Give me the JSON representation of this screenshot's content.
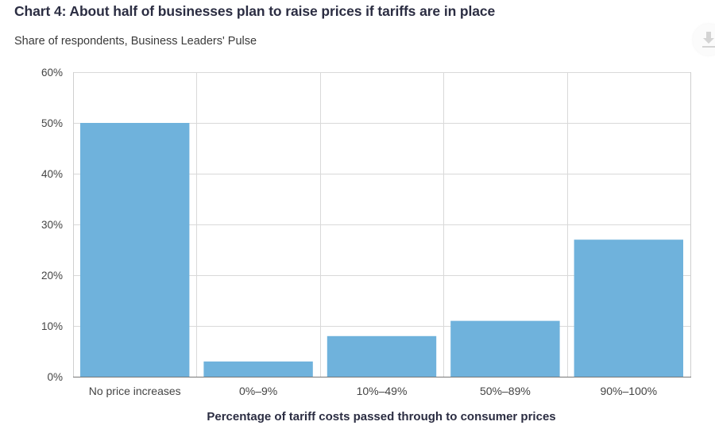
{
  "header": {
    "title": "Chart 4: About half of businesses plan to raise prices if tariffs are in place",
    "subtitle": "Share of respondents, Business Leaders' Pulse"
  },
  "toolbar": {
    "download_icon": "download-icon"
  },
  "colors": {
    "bar": "#6fb2dc",
    "grid": "#d9d9d9",
    "axis": "#777777",
    "title": "#2b2d42"
  },
  "chart_data": {
    "type": "bar",
    "title": "Chart 4: About half of businesses plan to raise prices if tariffs are in place",
    "subtitle": "Share of respondents, Business Leaders' Pulse",
    "xlabel": "Percentage of tariff costs passed through to consumer prices",
    "ylabel": "",
    "categories": [
      "No price increases",
      "0%–9%",
      "10%–49%",
      "50%–89%",
      "90%–100%"
    ],
    "values": [
      50,
      3,
      8,
      11,
      27
    ],
    "unit": "%",
    "ylim": [
      0,
      60
    ],
    "yticks": [
      0,
      10,
      20,
      30,
      40,
      50,
      60
    ],
    "ytick_labels": [
      "0%",
      "10%",
      "20%",
      "30%",
      "40%",
      "50%",
      "60%"
    ],
    "grid": true,
    "legend": "none"
  }
}
